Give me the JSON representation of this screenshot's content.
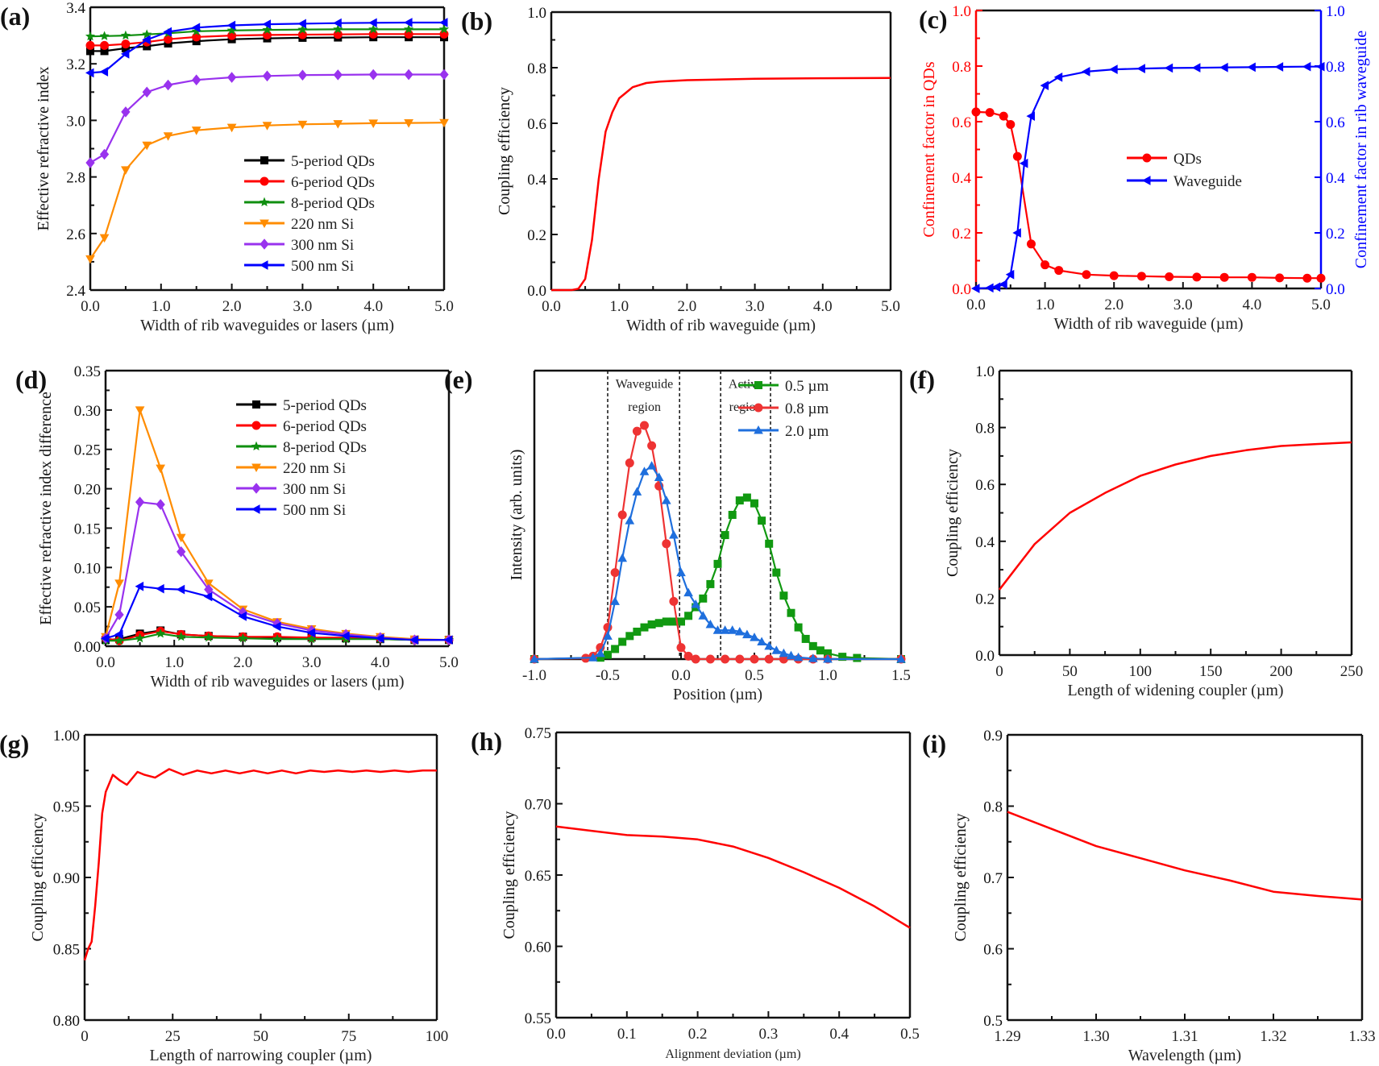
{
  "chart_data": [
    {
      "panel_label": "(a)",
      "type": "line",
      "xlabel": "Width of rib waveguides or lasers (µm)",
      "ylabel": "Effective refractive index",
      "xlim": [
        0,
        5
      ],
      "ylim": [
        2.4,
        3.4
      ],
      "xticks": [
        "0.0",
        "1.0",
        "2.0",
        "3.0",
        "4.0",
        "5.0"
      ],
      "yticks": [
        "2.4",
        "2.6",
        "2.8",
        "3.0",
        "3.2",
        "3.4"
      ],
      "legend_position": "lower-right",
      "x": [
        0,
        0.2,
        0.5,
        0.8,
        1.1,
        1.5,
        2,
        2.5,
        3,
        3.5,
        4,
        4.5,
        5
      ],
      "series": [
        {
          "name": "5-period QDs",
          "color": "#000000",
          "marker": "square",
          "y": [
            3.245,
            3.245,
            3.255,
            3.262,
            3.272,
            3.28,
            3.287,
            3.29,
            3.292,
            3.293,
            3.294,
            3.294,
            3.294
          ]
        },
        {
          "name": "6-period QDs",
          "color": "#ff0000",
          "marker": "circle",
          "y": [
            3.265,
            3.265,
            3.27,
            3.277,
            3.287,
            3.295,
            3.3,
            3.302,
            3.303,
            3.304,
            3.305,
            3.305,
            3.305
          ]
        },
        {
          "name": "8-period QDs",
          "color": "#108f10",
          "marker": "star",
          "y": [
            3.297,
            3.298,
            3.3,
            3.304,
            3.308,
            3.315,
            3.318,
            3.32,
            3.321,
            3.322,
            3.322,
            3.322,
            3.322
          ]
        },
        {
          "name": "220 nm Si",
          "color": "#ff8c00",
          "marker": "triangle-down",
          "y": [
            2.51,
            2.585,
            2.825,
            2.912,
            2.945,
            2.965,
            2.975,
            2.982,
            2.986,
            2.988,
            2.99,
            2.991,
            2.992
          ]
        },
        {
          "name": "300 nm Si",
          "color": "#9932ee",
          "marker": "diamond",
          "y": [
            2.85,
            2.88,
            3.03,
            3.1,
            3.125,
            3.143,
            3.152,
            3.157,
            3.16,
            3.161,
            3.162,
            3.162,
            3.162
          ]
        },
        {
          "name": "500 nm Si",
          "color": "#0000ff",
          "marker": "triangle-left",
          "y": [
            3.168,
            3.172,
            3.235,
            3.285,
            3.313,
            3.328,
            3.336,
            3.34,
            3.342,
            3.344,
            3.345,
            3.346,
            3.346
          ]
        }
      ]
    },
    {
      "panel_label": "(b)",
      "type": "line",
      "xlabel": "Width of rib waveguide (µm)",
      "ylabel": "Coupling efficiency",
      "xlim": [
        0,
        5
      ],
      "ylim": [
        0,
        1
      ],
      "xticks": [
        "0.0",
        "1.0",
        "2.0",
        "3.0",
        "4.0",
        "5.0"
      ],
      "yticks": [
        "0.0",
        "0.2",
        "0.4",
        "0.6",
        "0.8",
        "1.0"
      ],
      "x": [
        0,
        0.3,
        0.4,
        0.5,
        0.6,
        0.7,
        0.8,
        0.9,
        1.0,
        1.1,
        1.2,
        1.4,
        1.6,
        2,
        3,
        4,
        5
      ],
      "series": [
        {
          "color": "#ff0000",
          "marker": "none",
          "y": [
            0,
            0,
            0.005,
            0.04,
            0.18,
            0.4,
            0.57,
            0.64,
            0.69,
            0.71,
            0.73,
            0.745,
            0.75,
            0.755,
            0.76,
            0.762,
            0.763
          ]
        }
      ]
    },
    {
      "panel_label": "(c)",
      "type": "line",
      "xlabel": "Width of rib waveguide (µm)",
      "ylabel": "Confinement factor in QDs",
      "ylabel_right": "Confinement factor in rib waveguide",
      "xlim": [
        0,
        5
      ],
      "ylim": [
        0,
        1
      ],
      "ylim_right": [
        0,
        1
      ],
      "xticks": [
        "0.0",
        "1.0",
        "2.0",
        "3.0",
        "4.0",
        "5.0"
      ],
      "yticks": [
        "0.0",
        "0.2",
        "0.4",
        "0.6",
        "0.8",
        "1.0"
      ],
      "yticks_right": [
        "0.0",
        "0.2",
        "0.4",
        "0.6",
        "0.8",
        "1.0"
      ],
      "left_axis_color": "#ff0000",
      "right_axis_color": "#0000ff",
      "legend_position": "center-right",
      "series": [
        {
          "name": "QDs",
          "color": "#ff0000",
          "marker": "circle",
          "axis": "left",
          "x": [
            0,
            0.2,
            0.4,
            0.5,
            0.6,
            0.8,
            1.0,
            1.2,
            1.6,
            2.0,
            2.4,
            2.8,
            3.2,
            3.6,
            4.0,
            4.4,
            4.8,
            5.0
          ],
          "y": [
            0.635,
            0.633,
            0.62,
            0.59,
            0.475,
            0.16,
            0.085,
            0.065,
            0.05,
            0.046,
            0.044,
            0.042,
            0.041,
            0.04,
            0.04,
            0.038,
            0.037,
            0.037
          ]
        },
        {
          "name": "Waveguide",
          "color": "#0000ff",
          "marker": "triangle-left",
          "axis": "right",
          "x": [
            0,
            0.2,
            0.3,
            0.4,
            0.5,
            0.6,
            0.7,
            0.8,
            1.0,
            1.2,
            1.6,
            2.0,
            2.4,
            2.8,
            3.2,
            3.6,
            4.0,
            4.4,
            4.8,
            5
          ],
          "y": [
            0,
            0.002,
            0.005,
            0.015,
            0.05,
            0.2,
            0.45,
            0.62,
            0.73,
            0.76,
            0.78,
            0.788,
            0.791,
            0.793,
            0.794,
            0.795,
            0.796,
            0.797,
            0.798,
            0.798
          ]
        }
      ]
    },
    {
      "panel_label": "(d)",
      "type": "line",
      "xlabel": "Width of rib waveguides or lasers (µm)",
      "ylabel": "Effective refractive index difference",
      "xlim": [
        0,
        5
      ],
      "ylim": [
        0,
        0.35
      ],
      "xticks": [
        "0.0",
        "1.0",
        "2.0",
        "3.0",
        "4.0",
        "5.0"
      ],
      "yticks": [
        "0.00",
        "0.05",
        "0.10",
        "0.15",
        "0.20",
        "0.25",
        "0.30",
        "0.35"
      ],
      "legend_position": "top-right",
      "x": [
        0,
        0.2,
        0.5,
        0.8,
        1.1,
        1.5,
        2,
        2.5,
        3,
        3.5,
        4,
        4.5,
        5
      ],
      "series": [
        {
          "name": "5-period QDs",
          "color": "#000000",
          "marker": "square",
          "y": [
            0.008,
            0.009,
            0.016,
            0.02,
            0.015,
            0.013,
            0.012,
            0.011,
            0.011,
            0.01,
            0.009,
            0.008,
            0.008
          ]
        },
        {
          "name": "6-period QDs",
          "color": "#ff0000",
          "marker": "circle",
          "y": [
            0.01,
            0.007,
            0.014,
            0.019,
            0.015,
            0.013,
            0.012,
            0.012,
            0.011,
            0.011,
            0.01,
            0.008,
            0.008
          ]
        },
        {
          "name": "8-period QDs",
          "color": "#108f10",
          "marker": "star",
          "y": [
            0.007,
            0.007,
            0.01,
            0.016,
            0.012,
            0.011,
            0.01,
            0.009,
            0.009,
            0.009,
            0.009,
            0.008,
            0.008
          ]
        },
        {
          "name": "220 nm Si",
          "color": "#ff8c00",
          "marker": "triangle-down",
          "y": [
            0.012,
            0.08,
            0.3,
            0.226,
            0.138,
            0.08,
            0.047,
            0.031,
            0.022,
            0.016,
            0.012,
            0.009,
            0.008
          ]
        },
        {
          "name": "300 nm Si",
          "color": "#9932ee",
          "marker": "diamond",
          "y": [
            0.01,
            0.04,
            0.183,
            0.18,
            0.12,
            0.072,
            0.043,
            0.029,
            0.02,
            0.015,
            0.011,
            0.008,
            0.008
          ]
        },
        {
          "name": "500 nm Si",
          "color": "#0000ff",
          "marker": "triangle-left",
          "y": [
            0.01,
            0.015,
            0.076,
            0.073,
            0.072,
            0.063,
            0.038,
            0.025,
            0.017,
            0.013,
            0.01,
            0.008,
            0.008
          ]
        }
      ]
    },
    {
      "panel_label": "(e)",
      "type": "line",
      "xlabel": "Position (µm)",
      "ylabel": "Intensity (arb. units)",
      "xlim": [
        -1,
        1.5
      ],
      "ylim": [
        0,
        1
      ],
      "xticks": [
        "-1.0",
        "-0.5",
        "0.0",
        "0.5",
        "1.0",
        "1.5"
      ],
      "yticks": [],
      "legend_position": "top-right",
      "region_lines": [
        -0.5,
        -0.01,
        0.27,
        0.61
      ],
      "annotations": [
        {
          "text": "Waveguide",
          "x": -0.25,
          "y": 0.94
        },
        {
          "text": "region",
          "x": -0.25,
          "y": 0.86
        },
        {
          "text": "Active",
          "x": 0.44,
          "y": 0.94
        },
        {
          "text": "region",
          "x": 0.44,
          "y": 0.86
        }
      ],
      "series": [
        {
          "name": "0.5 µm",
          "color": "#119911",
          "marker": "square",
          "x": [
            -1,
            -0.55,
            -0.5,
            -0.45,
            -0.4,
            -0.35,
            -0.3,
            -0.25,
            -0.2,
            -0.15,
            -0.1,
            -0.05,
            0,
            0.05,
            0.1,
            0.15,
            0.2,
            0.25,
            0.3,
            0.35,
            0.4,
            0.45,
            0.5,
            0.55,
            0.6,
            0.65,
            0.7,
            0.75,
            0.8,
            0.85,
            0.9,
            0.95,
            1.0,
            1.1,
            1.2,
            1.5
          ],
          "y": [
            0,
            0.005,
            0.015,
            0.035,
            0.06,
            0.08,
            0.095,
            0.11,
            0.12,
            0.125,
            0.13,
            0.13,
            0.13,
            0.15,
            0.18,
            0.21,
            0.26,
            0.33,
            0.43,
            0.5,
            0.55,
            0.56,
            0.54,
            0.48,
            0.4,
            0.3,
            0.22,
            0.16,
            0.11,
            0.07,
            0.045,
            0.03,
            0.02,
            0.008,
            0.004,
            0
          ]
        },
        {
          "name": "0.8 µm",
          "color": "#ee3333",
          "marker": "circle",
          "x": [
            -1,
            -0.65,
            -0.6,
            -0.55,
            -0.5,
            -0.45,
            -0.4,
            -0.35,
            -0.3,
            -0.25,
            -0.2,
            -0.15,
            -0.1,
            -0.05,
            0,
            0.05,
            0.1,
            0.2,
            0.3,
            0.4,
            0.5,
            0.6,
            0.7,
            0.8,
            0.9,
            1.0,
            1.5
          ],
          "y": [
            0,
            0.003,
            0.01,
            0.04,
            0.11,
            0.3,
            0.5,
            0.68,
            0.79,
            0.81,
            0.74,
            0.6,
            0.4,
            0.2,
            0.04,
            0.01,
            0,
            0,
            0,
            0,
            0,
            0,
            0,
            0,
            0,
            0,
            0
          ]
        },
        {
          "name": "2.0 µm",
          "color": "#1f6fdd",
          "marker": "triangle-up",
          "x": [
            -1,
            -0.6,
            -0.55,
            -0.5,
            -0.45,
            -0.4,
            -0.35,
            -0.3,
            -0.25,
            -0.2,
            -0.15,
            -0.1,
            -0.05,
            0,
            0.05,
            0.1,
            0.15,
            0.2,
            0.25,
            0.3,
            0.35,
            0.4,
            0.45,
            0.5,
            0.55,
            0.6,
            0.65,
            0.7,
            0.75,
            0.8,
            0.9,
            1.0,
            1.5
          ],
          "y": [
            0,
            0.005,
            0.02,
            0.08,
            0.2,
            0.35,
            0.48,
            0.58,
            0.65,
            0.67,
            0.63,
            0.55,
            0.43,
            0.3,
            0.23,
            0.19,
            0.15,
            0.12,
            0.1,
            0.1,
            0.1,
            0.095,
            0.085,
            0.075,
            0.06,
            0.045,
            0.03,
            0.02,
            0.012,
            0.006,
            0.002,
            0,
            0
          ]
        }
      ]
    },
    {
      "panel_label": "(f)",
      "type": "line",
      "xlabel": "Length of widening coupler (µm)",
      "ylabel": "Coupling efficiency",
      "xlim": [
        0,
        250
      ],
      "ylim": [
        0,
        1
      ],
      "xticks": [
        "0",
        "50",
        "100",
        "150",
        "200",
        "250"
      ],
      "yticks": [
        "0.0",
        "0.2",
        "0.4",
        "0.6",
        "0.8",
        "1.0"
      ],
      "x": [
        0,
        25,
        50,
        75,
        100,
        125,
        150,
        175,
        200,
        225,
        250
      ],
      "series": [
        {
          "color": "#ff0000",
          "marker": "none",
          "y": [
            0.23,
            0.39,
            0.5,
            0.57,
            0.63,
            0.67,
            0.7,
            0.72,
            0.735,
            0.742,
            0.748
          ]
        }
      ]
    },
    {
      "panel_label": "(g)",
      "type": "line",
      "xlabel": "Length of narrowing coupler (µm)",
      "ylabel": "Coupling efficiency",
      "xlim": [
        0,
        100
      ],
      "ylim": [
        0.8,
        1.0
      ],
      "xticks": [
        "0",
        "25",
        "50",
        "75",
        "100"
      ],
      "yticks": [
        "0.80",
        "0.85",
        "0.90",
        "0.95",
        "1.00"
      ],
      "x": [
        0,
        1,
        2,
        3,
        4,
        5,
        6,
        8,
        10,
        12,
        15,
        17,
        20,
        24,
        28,
        32,
        36,
        40,
        44,
        48,
        52,
        56,
        60,
        64,
        68,
        72,
        76,
        80,
        84,
        88,
        92,
        96,
        100
      ],
      "series": [
        {
          "color": "#ff0000",
          "marker": "none",
          "y": [
            0.842,
            0.85,
            0.855,
            0.88,
            0.91,
            0.945,
            0.96,
            0.972,
            0.968,
            0.965,
            0.974,
            0.972,
            0.97,
            0.976,
            0.972,
            0.975,
            0.973,
            0.975,
            0.973,
            0.975,
            0.973,
            0.975,
            0.973,
            0.975,
            0.974,
            0.975,
            0.974,
            0.975,
            0.974,
            0.975,
            0.974,
            0.975,
            0.975
          ]
        }
      ]
    },
    {
      "panel_label": "(h)",
      "type": "line",
      "xlabel": "Alignment deviation (µm)",
      "ylabel": "Coupling efficiency",
      "xlim": [
        0,
        0.5
      ],
      "ylim": [
        0.55,
        0.75
      ],
      "xticks": [
        "0.0",
        "0.1",
        "0.2",
        "0.3",
        "0.4",
        "0.5"
      ],
      "yticks": [
        "0.55",
        "0.60",
        "0.65",
        "0.70",
        "0.75"
      ],
      "x": [
        0,
        0.05,
        0.1,
        0.15,
        0.2,
        0.25,
        0.3,
        0.35,
        0.4,
        0.45,
        0.5
      ],
      "series": [
        {
          "color": "#ff0000",
          "marker": "none",
          "y": [
            0.684,
            0.681,
            0.678,
            0.677,
            0.675,
            0.67,
            0.662,
            0.652,
            0.641,
            0.628,
            0.613
          ]
        }
      ]
    },
    {
      "panel_label": "(i)",
      "type": "line",
      "xlabel": "Wavelength (µm)",
      "ylabel": "Coupling efficiency",
      "xlim": [
        1.29,
        1.33
      ],
      "ylim": [
        0.5,
        0.9
      ],
      "xticks": [
        "1.29",
        "1.30",
        "1.31",
        "1.32",
        "1.33"
      ],
      "yticks": [
        "0.5",
        "0.6",
        "0.7",
        "0.8",
        "0.9"
      ],
      "x": [
        1.29,
        1.295,
        1.3,
        1.305,
        1.31,
        1.315,
        1.32,
        1.325,
        1.33
      ],
      "series": [
        {
          "color": "#ff0000",
          "marker": "none",
          "y": [
            0.792,
            0.768,
            0.744,
            0.727,
            0.71,
            0.696,
            0.68,
            0.674,
            0.669
          ]
        }
      ]
    }
  ]
}
